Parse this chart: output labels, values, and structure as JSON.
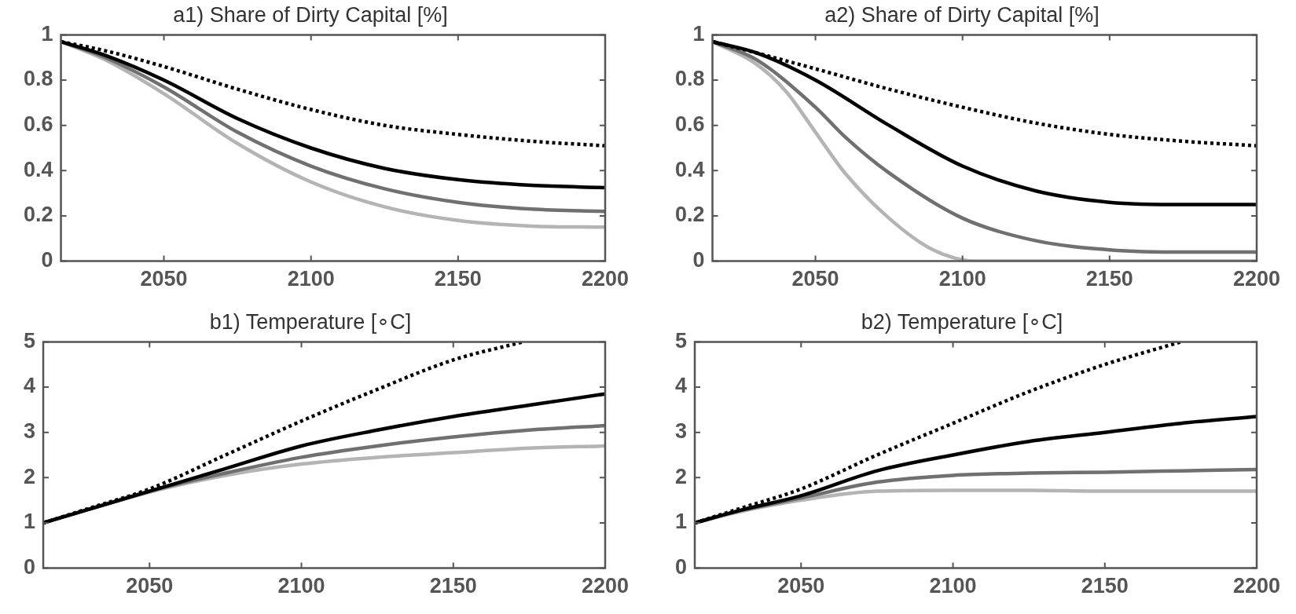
{
  "chart_data": [
    {
      "type": "line",
      "title": "a1) Share of Dirty Capital [%]",
      "xlim": [
        2015,
        2200
      ],
      "xticks": [
        2050,
        2100,
        2150,
        2200
      ],
      "ylim": [
        0,
        1
      ],
      "yticks": [
        0,
        0.2,
        0.4,
        0.6,
        0.8,
        1
      ],
      "grid": false,
      "legend": false,
      "marker": "none",
      "series": [
        {
          "color": "#000000",
          "line_style": "dotted",
          "x": [
            2015,
            2030,
            2050,
            2075,
            2100,
            2125,
            2150,
            2175,
            2200
          ],
          "values": [
            0.97,
            0.93,
            0.86,
            0.76,
            0.67,
            0.6,
            0.56,
            0.53,
            0.51
          ]
        },
        {
          "color": "#000000",
          "line_style": "solid",
          "x": [
            2015,
            2030,
            2050,
            2075,
            2100,
            2125,
            2150,
            2175,
            2200
          ],
          "values": [
            0.97,
            0.91,
            0.8,
            0.63,
            0.5,
            0.41,
            0.36,
            0.335,
            0.325
          ]
        },
        {
          "color": "#707070",
          "line_style": "solid",
          "x": [
            2015,
            2030,
            2050,
            2075,
            2100,
            2125,
            2150,
            2175,
            2200
          ],
          "values": [
            0.97,
            0.9,
            0.77,
            0.57,
            0.42,
            0.32,
            0.26,
            0.23,
            0.22
          ]
        },
        {
          "color": "#b4b4b4",
          "line_style": "solid",
          "x": [
            2015,
            2030,
            2050,
            2075,
            2100,
            2125,
            2150,
            2175,
            2200
          ],
          "values": [
            0.97,
            0.89,
            0.74,
            0.52,
            0.35,
            0.24,
            0.18,
            0.155,
            0.15
          ]
        }
      ]
    },
    {
      "type": "line",
      "title": "a2) Share of Dirty Capital [%]",
      "xlim": [
        2015,
        2200
      ],
      "xticks": [
        2050,
        2100,
        2150,
        2200
      ],
      "ylim": [
        0,
        1
      ],
      "yticks": [
        0,
        0.2,
        0.4,
        0.6,
        0.8,
        1
      ],
      "grid": false,
      "legend": false,
      "marker": "none",
      "series": [
        {
          "color": "#000000",
          "line_style": "dotted",
          "x": [
            2015,
            2030,
            2050,
            2075,
            2100,
            2125,
            2150,
            2175,
            2200
          ],
          "values": [
            0.97,
            0.92,
            0.85,
            0.76,
            0.68,
            0.61,
            0.56,
            0.53,
            0.51
          ]
        },
        {
          "color": "#000000",
          "line_style": "solid",
          "x": [
            2015,
            2030,
            2050,
            2075,
            2100,
            2125,
            2150,
            2175,
            2200
          ],
          "values": [
            0.97,
            0.92,
            0.8,
            0.6,
            0.42,
            0.31,
            0.26,
            0.25,
            0.25
          ]
        },
        {
          "color": "#707070",
          "line_style": "solid",
          "x": [
            2015,
            2030,
            2050,
            2060,
            2075,
            2100,
            2125,
            2150,
            2175,
            2200
          ],
          "values": [
            0.97,
            0.89,
            0.68,
            0.55,
            0.39,
            0.19,
            0.09,
            0.05,
            0.04,
            0.04
          ]
        },
        {
          "color": "#b4b4b4",
          "line_style": "solid",
          "x": [
            2015,
            2030,
            2040,
            2050,
            2060,
            2075,
            2090,
            2105,
            2150,
            2200
          ],
          "values": [
            0.97,
            0.87,
            0.75,
            0.57,
            0.39,
            0.19,
            0.05,
            0,
            0,
            0
          ]
        }
      ]
    },
    {
      "type": "line",
      "title": "b1) Temperature [∘C]",
      "xlim": [
        2015,
        2200
      ],
      "xticks": [
        2050,
        2100,
        2150,
        2200
      ],
      "ylim": [
        0,
        5
      ],
      "yticks": [
        0,
        1,
        2,
        3,
        4,
        5
      ],
      "grid": false,
      "legend": false,
      "marker": "none",
      "series": [
        {
          "color": "#000000",
          "line_style": "dotted",
          "x": [
            2015,
            2030,
            2050,
            2075,
            2100,
            2125,
            2150,
            2173
          ],
          "values": [
            1,
            1.32,
            1.75,
            2.5,
            3.25,
            3.95,
            4.6,
            5
          ]
        },
        {
          "color": "#000000",
          "line_style": "solid",
          "x": [
            2015,
            2030,
            2050,
            2075,
            2100,
            2125,
            2150,
            2175,
            2200
          ],
          "values": [
            1,
            1.3,
            1.7,
            2.2,
            2.7,
            3.05,
            3.35,
            3.6,
            3.85
          ]
        },
        {
          "color": "#707070",
          "line_style": "solid",
          "x": [
            2015,
            2030,
            2050,
            2075,
            2100,
            2125,
            2150,
            2175,
            2200
          ],
          "values": [
            1,
            1.3,
            1.7,
            2.1,
            2.45,
            2.7,
            2.9,
            3.05,
            3.15
          ]
        },
        {
          "color": "#b4b4b4",
          "line_style": "solid",
          "x": [
            2015,
            2030,
            2050,
            2075,
            2100,
            2125,
            2150,
            2175,
            2200
          ],
          "values": [
            1,
            1.3,
            1.68,
            2.05,
            2.3,
            2.45,
            2.55,
            2.65,
            2.7
          ]
        }
      ]
    },
    {
      "type": "line",
      "title": "b2) Temperature [∘C]",
      "xlim": [
        2015,
        2200
      ],
      "xticks": [
        2050,
        2100,
        2150,
        2200
      ],
      "ylim": [
        0,
        5
      ],
      "yticks": [
        0,
        1,
        2,
        3,
        4,
        5
      ],
      "grid": false,
      "legend": false,
      "marker": "none",
      "series": [
        {
          "color": "#000000",
          "line_style": "dotted",
          "x": [
            2015,
            2030,
            2050,
            2075,
            2100,
            2125,
            2150,
            2175
          ],
          "values": [
            1,
            1.32,
            1.75,
            2.5,
            3.2,
            3.9,
            4.5,
            5
          ]
        },
        {
          "color": "#000000",
          "line_style": "solid",
          "x": [
            2015,
            2030,
            2050,
            2075,
            2100,
            2125,
            2150,
            2175,
            2200
          ],
          "values": [
            1,
            1.28,
            1.6,
            2.15,
            2.5,
            2.8,
            3,
            3.2,
            3.35
          ]
        },
        {
          "color": "#707070",
          "line_style": "solid",
          "x": [
            2015,
            2030,
            2050,
            2075,
            2100,
            2125,
            2150,
            2175,
            2200
          ],
          "values": [
            1,
            1.27,
            1.55,
            1.9,
            2.05,
            2.1,
            2.12,
            2.15,
            2.18
          ]
        },
        {
          "color": "#b4b4b4",
          "line_style": "solid",
          "x": [
            2015,
            2030,
            2050,
            2075,
            2100,
            2125,
            2150,
            2175,
            2200
          ],
          "values": [
            1,
            1.25,
            1.5,
            1.7,
            1.72,
            1.72,
            1.7,
            1.7,
            1.7
          ]
        }
      ]
    }
  ]
}
